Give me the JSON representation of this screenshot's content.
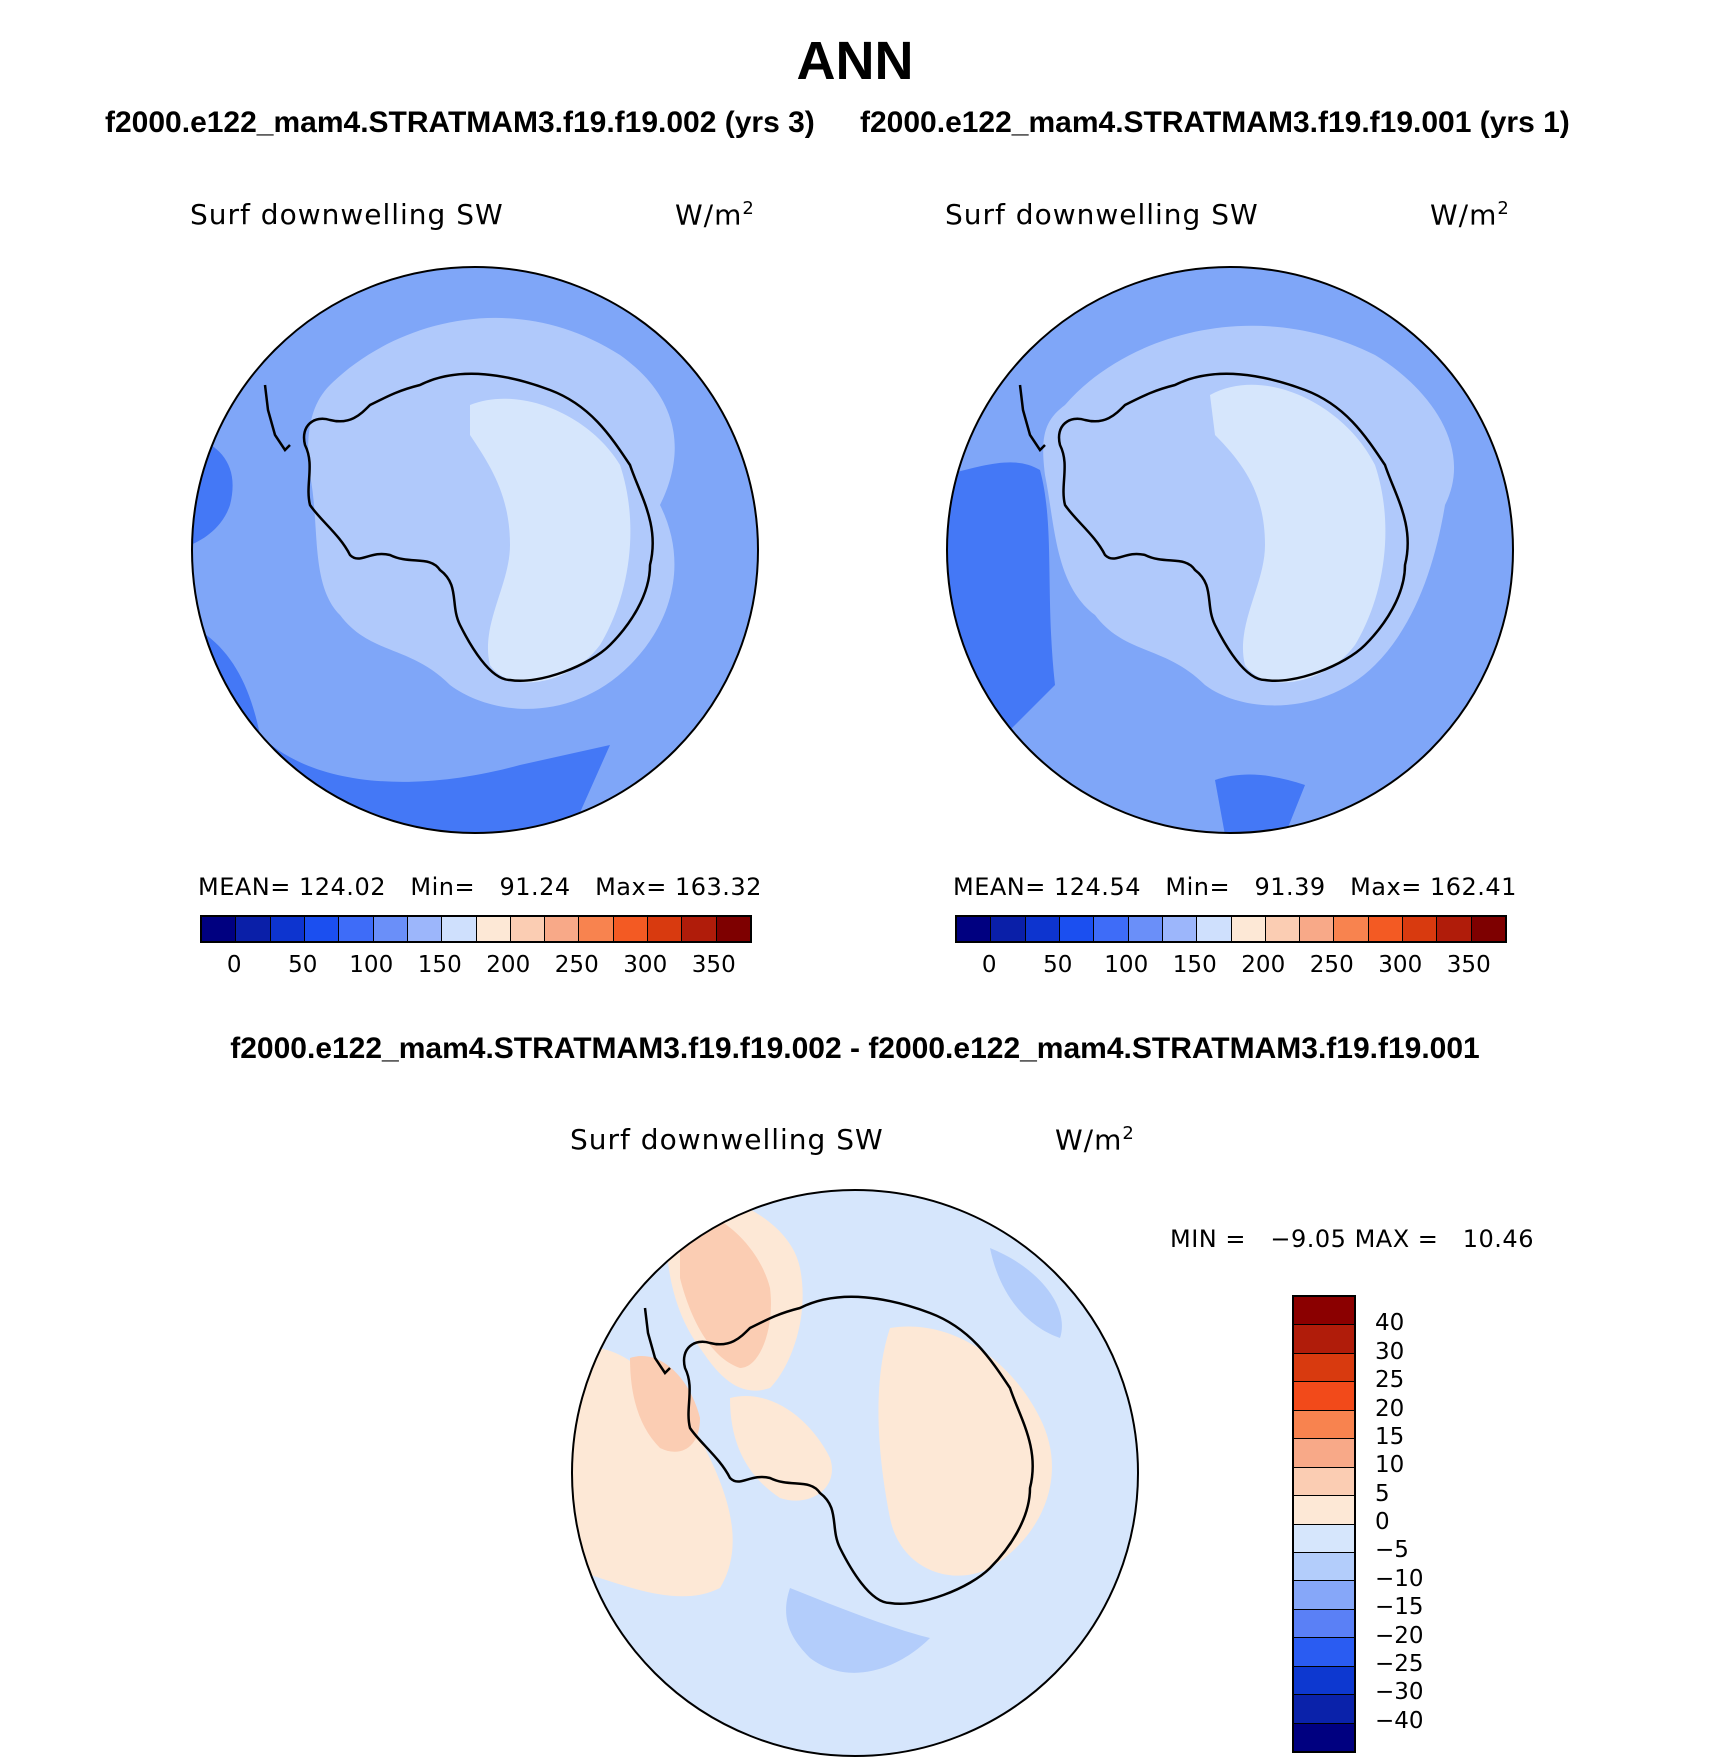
{
  "figure": {
    "title": "ANN",
    "header_left": "f2000.e122_mam4.STRATMAM3.f19.f19.002 (yrs 3)",
    "header_right": "f2000.e122_mam4.STRATMAM3.f19.f19.001 (yrs 1)",
    "diff_header": "f2000.e122_mam4.STRATMAM3.f19.f19.002 - f2000.e122_mam4.STRATMAM3.f19.f19.001"
  },
  "panels": [
    {
      "variable": "Surf downwelling SW",
      "units_base": "W/m",
      "units_exp": "2",
      "mean_label": "MEAN=",
      "mean": "124.02",
      "min_label": "Min=",
      "min": "91.24",
      "max_label": "Max=",
      "max": "163.32"
    },
    {
      "variable": "Surf downwelling SW",
      "units_base": "W/m",
      "units_exp": "2",
      "mean_label": "MEAN=",
      "mean": "124.54",
      "min_label": "Min=",
      "min": "91.39",
      "max_label": "Max=",
      "max": "162.41"
    }
  ],
  "diff_panel": {
    "variable": "Surf downwelling SW",
    "units_base": "W/m",
    "units_exp": "2",
    "min_label": "MIN =",
    "min": "−9.05",
    "max_label": "MAX =",
    "max": "10.46"
  },
  "colorbar_abs": {
    "colors": [
      "#000080",
      "#0a1fa8",
      "#0d34cf",
      "#1b4ff0",
      "#3e6cf8",
      "#6a8ff9",
      "#9cb6fb",
      "#cfe0fd",
      "#fde8d6",
      "#fbcdb3",
      "#f8a988",
      "#f8834f",
      "#f35a23",
      "#d83a0f",
      "#b01c0a",
      "#7e0000"
    ],
    "labels": [
      "0",
      "50",
      "100",
      "150",
      "200",
      "250",
      "300",
      "350"
    ]
  },
  "colorbar_diff": {
    "colors": [
      "#8b0000",
      "#b01c0a",
      "#d83a0f",
      "#f24a1a",
      "#f8834f",
      "#f8a988",
      "#fbcdb3",
      "#fde8d6",
      "#d6e6fc",
      "#b3cdfb",
      "#86a7f9",
      "#5a80f6",
      "#2a5cf2",
      "#0d38d0",
      "#0a22aa",
      "#000080"
    ],
    "labels": [
      "40",
      "30",
      "25",
      "20",
      "15",
      "10",
      "5",
      "0",
      "−5",
      "−10",
      "−15",
      "−20",
      "−25",
      "−30",
      "−40"
    ]
  },
  "map_colors": {
    "ocean_mid": "#7fa6f8",
    "ocean_dark": "#4478f6",
    "shelf": "#b0c9fb",
    "plateau": "#d6e6fc",
    "diff_neutral_neg": "#d6e6fc",
    "diff_neg": "#b3cdfb",
    "diff_pos": "#fde8d6",
    "diff_pos2": "#fbcdb3"
  }
}
